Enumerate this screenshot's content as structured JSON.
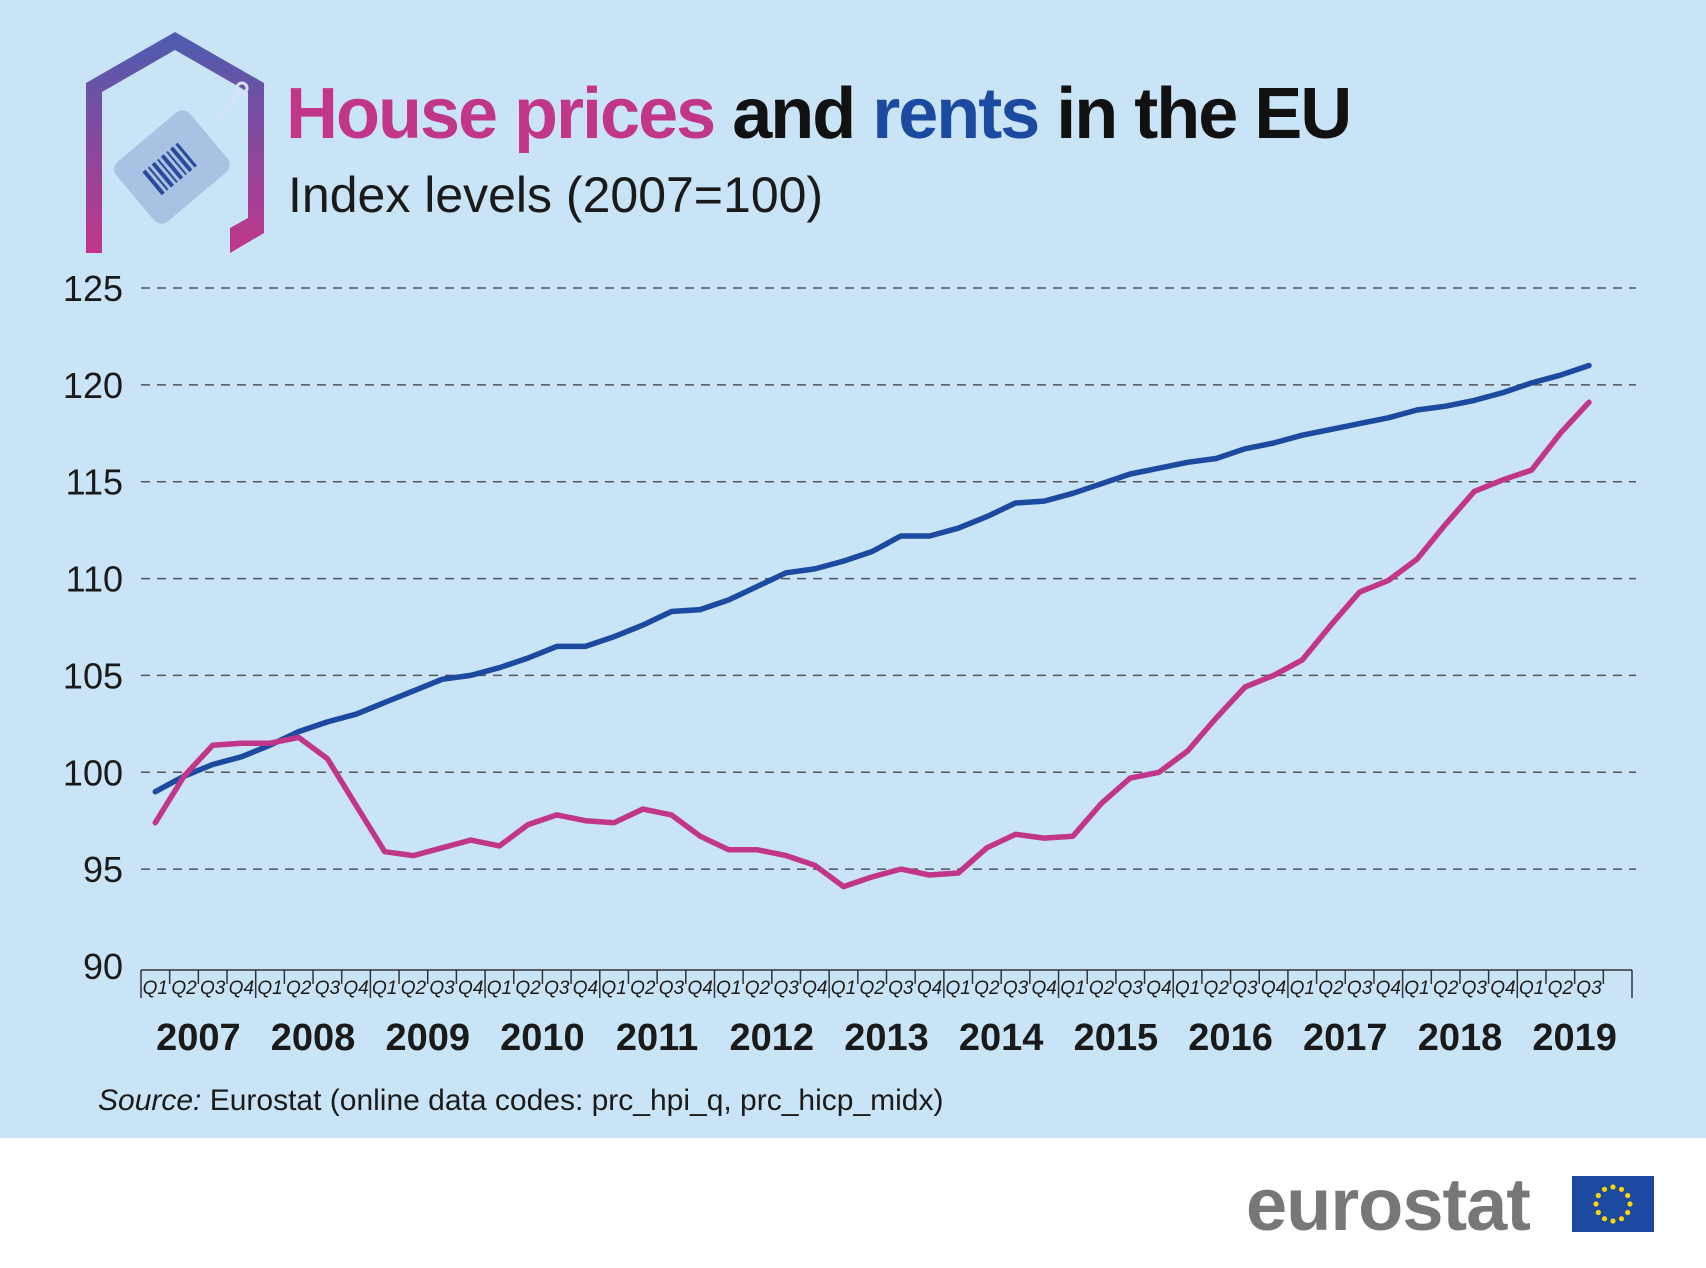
{
  "header": {
    "title_part1": "House prices",
    "title_part2": " and ",
    "title_part3": "rents",
    "title_part4": " in the EU",
    "subtitle": "Index levels (2007=100)"
  },
  "colors": {
    "house_prices": "#c2368a",
    "rents": "#1b4aa0",
    "background": "#c8e4f6"
  },
  "icons": [
    "house-outline-icon",
    "price-tag-icon",
    "eu-flag-icon"
  ],
  "chart_data": {
    "type": "line",
    "ylim": [
      90,
      125
    ],
    "yticks": [
      90,
      95,
      100,
      105,
      110,
      115,
      120,
      125
    ],
    "grid": "horizontal dashed",
    "years": [
      "2007",
      "2008",
      "2009",
      "2010",
      "2011",
      "2012",
      "2013",
      "2014",
      "2015",
      "2016",
      "2017",
      "2018",
      "2019"
    ],
    "quarters": [
      "Q1",
      "Q2",
      "Q3",
      "Q4"
    ],
    "x": [
      "2007Q1",
      "2007Q2",
      "2007Q3",
      "2007Q4",
      "2008Q1",
      "2008Q2",
      "2008Q3",
      "2008Q4",
      "2009Q1",
      "2009Q2",
      "2009Q3",
      "2009Q4",
      "2010Q1",
      "2010Q2",
      "2010Q3",
      "2010Q4",
      "2011Q1",
      "2011Q2",
      "2011Q3",
      "2011Q4",
      "2012Q1",
      "2012Q2",
      "2012Q3",
      "2012Q4",
      "2013Q1",
      "2013Q2",
      "2013Q3",
      "2013Q4",
      "2014Q1",
      "2014Q2",
      "2014Q3",
      "2014Q4",
      "2015Q1",
      "2015Q2",
      "2015Q3",
      "2015Q4",
      "2016Q1",
      "2016Q2",
      "2016Q3",
      "2016Q4",
      "2017Q1",
      "2017Q2",
      "2017Q3",
      "2017Q4",
      "2018Q1",
      "2018Q2",
      "2018Q3",
      "2018Q4",
      "2019Q1",
      "2019Q2",
      "2019Q3"
    ],
    "series": [
      {
        "key": "rents",
        "color": "#1b4aa0",
        "values": [
          99.0,
          99.8,
          100.4,
          100.8,
          101.4,
          102.1,
          102.6,
          103.0,
          103.6,
          104.2,
          104.8,
          105.0,
          105.4,
          105.9,
          106.5,
          106.5,
          107.0,
          107.6,
          108.3,
          108.4,
          108.9,
          109.6,
          110.3,
          110.5,
          110.9,
          111.4,
          112.2,
          112.2,
          112.6,
          113.2,
          113.9,
          114.0,
          114.4,
          114.9,
          115.4,
          115.7,
          116.0,
          116.2,
          116.7,
          117.0,
          117.4,
          117.7,
          118.0,
          118.3,
          118.7,
          118.9,
          119.2,
          119.6,
          120.1,
          120.5,
          121.0
        ]
      },
      {
        "key": "house_prices",
        "color": "#c2368a",
        "values": [
          97.4,
          99.8,
          101.4,
          101.5,
          101.5,
          101.8,
          100.7,
          98.3,
          95.9,
          95.7,
          96.1,
          96.5,
          96.2,
          97.3,
          97.8,
          97.5,
          97.4,
          98.1,
          97.8,
          96.7,
          96.0,
          96.0,
          95.7,
          95.2,
          94.1,
          94.6,
          95.0,
          94.7,
          94.8,
          96.1,
          96.8,
          96.6,
          96.7,
          98.4,
          99.7,
          100.0,
          101.1,
          102.8,
          104.4,
          105.0,
          105.8,
          107.6,
          109.3,
          109.9,
          111.0,
          112.8,
          114.5,
          115.1,
          115.6,
          117.5,
          119.1
        ]
      }
    ]
  },
  "footer": {
    "source_label": "Source:",
    "source_text": " Eurostat (online data codes: prc_hpi_q, prc_hicp_midx)",
    "brand": "eurostat"
  }
}
